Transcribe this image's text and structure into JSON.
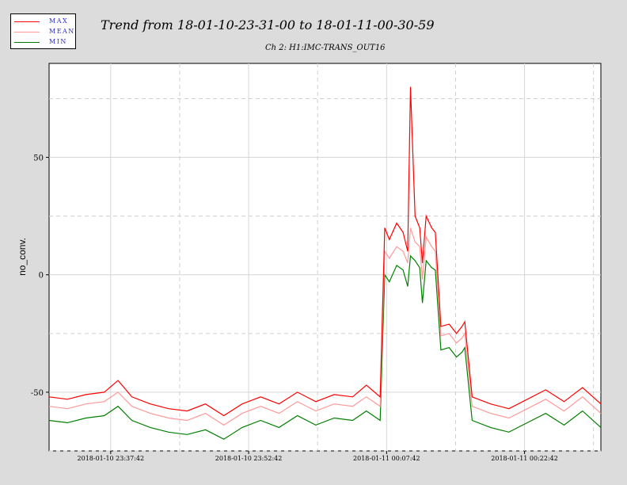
{
  "legend": [
    {
      "label": "MAX",
      "color": "#ff0000"
    },
    {
      "label": "MEAN",
      "color": "#ff9999"
    },
    {
      "label": "MIN",
      "color": "#008000"
    }
  ],
  "title": "Trend from 18-01-10-23-31-00 to 18-01-11-00-30-59",
  "subtitle": "Ch 2: H1:IMC-TRANS_OUT16",
  "chart_data": {
    "type": "line",
    "title": "Trend from 18-01-10-23-31-00 to 18-01-11-00-30-59",
    "subtitle": "Ch 2: H1:IMC-TRANS_OUT16",
    "xlabel": "",
    "ylabel": "no_conv.",
    "x_unit": "minutes after 2018-01-10 23:31:00",
    "xlim": [
      0,
      60
    ],
    "ylim": [
      -75,
      90
    ],
    "yticks": [
      -50,
      0,
      50
    ],
    "xticks": [
      {
        "value": 6.7,
        "label": "2018-01-10 23:37:42"
      },
      {
        "value": 21.7,
        "label": "2018-01-10 23:52:42"
      },
      {
        "value": 36.7,
        "label": "2018-01-11 00:07:42"
      },
      {
        "value": 51.7,
        "label": "2018-01-11 00:22:42"
      }
    ],
    "grid": true,
    "legend_position": "top-left",
    "series": [
      {
        "name": "MAX",
        "color": "#ff0000",
        "x": [
          0,
          2,
          4,
          6,
          7.5,
          9,
          11,
          13,
          15,
          17,
          19,
          21,
          23,
          25,
          27,
          29,
          31,
          33,
          34.5,
          36,
          36.5,
          37,
          37.8,
          38.5,
          39,
          39.3,
          39.8,
          40.3,
          40.6,
          41,
          41.6,
          42,
          42.6,
          43.5,
          44.3,
          44.9,
          45.2,
          46,
          48,
          50,
          52,
          54,
          56,
          58,
          60
        ],
        "y": [
          -52,
          -53,
          -51,
          -50,
          -45,
          -52,
          -55,
          -57,
          -58,
          -55,
          -60,
          -55,
          -52,
          -55,
          -50,
          -54,
          -51,
          -52,
          -47,
          -52,
          20,
          15,
          22,
          18,
          10,
          80,
          25,
          20,
          5,
          25,
          20,
          18,
          -22,
          -21,
          -25,
          -22,
          -20,
          -52,
          -55,
          -57,
          -53,
          -49,
          -54,
          -48,
          -55
        ]
      },
      {
        "name": "MEAN",
        "color": "#ff9999",
        "x": [
          0,
          2,
          4,
          6,
          7.5,
          9,
          11,
          13,
          15,
          17,
          19,
          21,
          23,
          25,
          27,
          29,
          31,
          33,
          34.5,
          36,
          36.5,
          37,
          37.8,
          38.5,
          39,
          39.3,
          39.8,
          40.3,
          40.6,
          41,
          41.6,
          42,
          42.6,
          43.5,
          44.3,
          44.9,
          45.2,
          46,
          48,
          50,
          52,
          54,
          56,
          58,
          60
        ],
        "y": [
          -56,
          -57,
          -55,
          -54,
          -50,
          -56,
          -59,
          -61,
          -62,
          -59,
          -64,
          -59,
          -56,
          -59,
          -54,
          -58,
          -55,
          -56,
          -52,
          -56,
          10,
          7,
          12,
          10,
          5,
          20,
          14,
          12,
          -2,
          16,
          12,
          10,
          -26,
          -25,
          -29,
          -27,
          -25,
          -56,
          -59,
          -61,
          -57,
          -53,
          -58,
          -52,
          -59
        ]
      },
      {
        "name": "MIN",
        "color": "#008000",
        "x": [
          0,
          2,
          4,
          6,
          7.5,
          9,
          11,
          13,
          15,
          17,
          19,
          21,
          23,
          25,
          27,
          29,
          31,
          33,
          34.5,
          36,
          36.5,
          37,
          37.8,
          38.5,
          39,
          39.3,
          39.8,
          40.3,
          40.6,
          41,
          41.6,
          42,
          42.6,
          43.5,
          44.3,
          44.9,
          45.2,
          46,
          48,
          50,
          52,
          54,
          56,
          58,
          60
        ],
        "y": [
          -62,
          -63,
          -61,
          -60,
          -56,
          -62,
          -65,
          -67,
          -68,
          -66,
          -70,
          -65,
          -62,
          -65,
          -60,
          -64,
          -61,
          -62,
          -58,
          -62,
          0,
          -3,
          4,
          2,
          -5,
          8,
          6,
          3,
          -12,
          6,
          3,
          2,
          -32,
          -31,
          -35,
          -33,
          -31,
          -62,
          -65,
          -67,
          -63,
          -59,
          -64,
          -58,
          -65
        ]
      }
    ]
  }
}
